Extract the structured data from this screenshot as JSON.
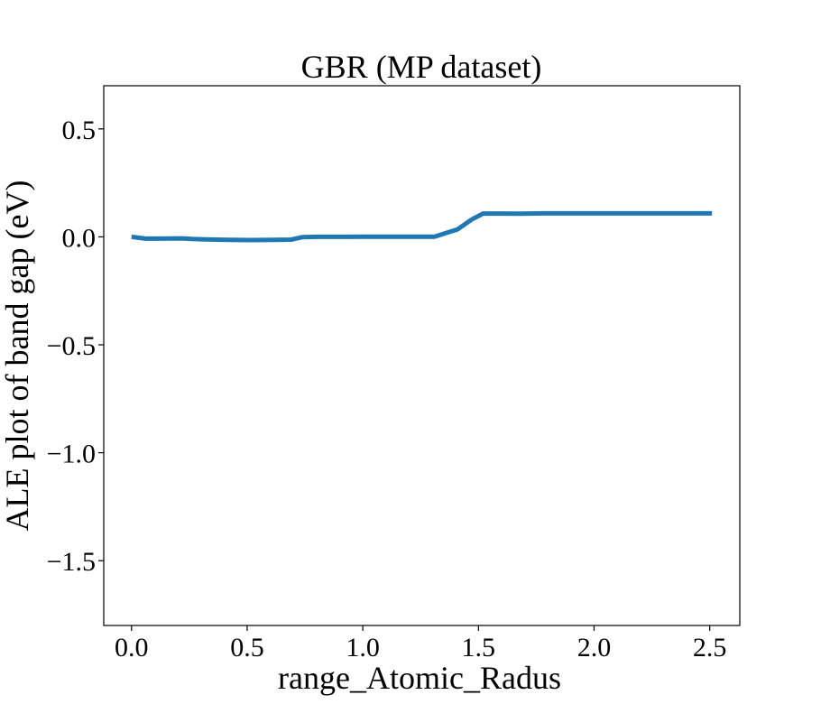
{
  "chart_data": {
    "type": "line",
    "title": "GBR (MP dataset)",
    "xlabel": "range_Atomic_Radus",
    "ylabel": "ALE plot of band gap (eV)",
    "xlim": [
      -0.12,
      2.63
    ],
    "ylim": [
      -1.8,
      0.7
    ],
    "xticks": [
      0.0,
      0.5,
      1.0,
      1.5,
      2.0,
      2.5
    ],
    "xtick_labels": [
      "0.0",
      "0.5",
      "1.0",
      "1.5",
      "2.0",
      "2.5"
    ],
    "yticks": [
      0.5,
      0.0,
      -0.5,
      -1.0,
      -1.5
    ],
    "ytick_labels": [
      "0.5",
      "0.0",
      "−0.5",
      "−1.0",
      "−1.5"
    ],
    "grid": false,
    "series": [
      {
        "color": "#1f77b4",
        "x": [
          0.0,
          0.06,
          0.12,
          0.22,
          0.26,
          0.32,
          0.42,
          0.52,
          0.62,
          0.69,
          0.74,
          0.8,
          0.92,
          1.0,
          1.1,
          1.2,
          1.31,
          1.41,
          1.47,
          1.52,
          1.6,
          1.68,
          1.78,
          1.9,
          2.0,
          2.1,
          2.2,
          2.3,
          2.4,
          2.51
        ],
        "y": [
          0.0,
          -0.008,
          -0.008,
          -0.007,
          -0.01,
          -0.012,
          -0.014,
          -0.015,
          -0.014,
          -0.013,
          -0.001,
          0.0,
          0.0,
          0.001,
          0.001,
          0.001,
          0.001,
          0.035,
          0.08,
          0.108,
          0.108,
          0.107,
          0.109,
          0.109,
          0.109,
          0.109,
          0.109,
          0.109,
          0.109,
          0.109
        ]
      }
    ]
  }
}
